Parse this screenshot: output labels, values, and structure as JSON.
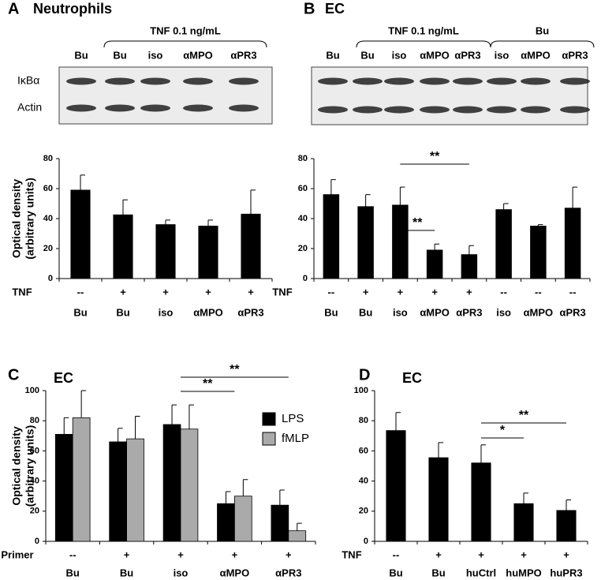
{
  "chart_data": [
    {
      "type": "bar",
      "panel": "A",
      "title": "Neutrophils",
      "blot": {
        "bracket_labels": [
          "TNF 0.1 ng/mL"
        ],
        "lane_labels": [
          "Bu",
          "Bu",
          "iso",
          "αMPO",
          "αPR3"
        ],
        "row_labels": [
          "IκBα",
          "Actin"
        ]
      },
      "ylabel": [
        "Optical density",
        "(arbitrary units)"
      ],
      "categories": [
        "Bu",
        "Bu",
        "iso",
        "αMPO",
        "αPR3"
      ],
      "condition_label": "TNF",
      "conditions": [
        "--",
        "+",
        "+",
        "+",
        "+"
      ],
      "values": [
        59,
        42.5,
        36,
        35,
        43
      ],
      "errors": [
        10,
        10,
        3,
        4,
        16
      ],
      "color": "#000000",
      "ylim": [
        0,
        80
      ],
      "yticks": [
        0,
        20,
        40,
        60,
        80
      ]
    },
    {
      "type": "bar",
      "panel": "B",
      "title": "EC",
      "blot": {
        "bracket_labels": [
          "TNF 0.1 ng/mL",
          "Bu"
        ],
        "lane_labels": [
          "Bu",
          "Bu",
          "iso",
          "αMPO",
          "αPR3",
          "iso",
          "αMPO",
          "αPR3"
        ]
      },
      "categories": [
        "Bu",
        "Bu",
        "iso",
        "αMPO",
        "αPR3",
        "iso",
        "αMPO",
        "αPR3"
      ],
      "condition_label": "TNF",
      "conditions": [
        "--",
        "+",
        "+",
        "+",
        "+",
        "--",
        "--",
        "--"
      ],
      "values": [
        56,
        48,
        49,
        19,
        16,
        46,
        35,
        47
      ],
      "errors": [
        10,
        8,
        12,
        4,
        6,
        4,
        1,
        14
      ],
      "color": "#000000",
      "significance": [
        {
          "from": 2,
          "to": 3,
          "label": "**"
        },
        {
          "from": 2,
          "to": 4,
          "label": "**"
        }
      ],
      "ylim": [
        0,
        80
      ],
      "yticks": [
        0,
        20,
        40,
        60,
        80
      ]
    },
    {
      "type": "bar",
      "panel": "C",
      "title": "EC",
      "ylabel": [
        "Optical density",
        "(arbitrary units)"
      ],
      "categories": [
        "Bu",
        "Bu",
        "iso",
        "αMPO",
        "αPR3"
      ],
      "condition_label": "Primer",
      "conditions": [
        "--",
        "+",
        "+",
        "+",
        "+"
      ],
      "series": [
        {
          "name": "LPS",
          "color": "#000000",
          "values": [
            71,
            66,
            77.5,
            25,
            24
          ],
          "errors": [
            11,
            9,
            13,
            8,
            10
          ]
        },
        {
          "name": "fMLP",
          "color": "#aaaaaa",
          "values": [
            82,
            68,
            74.5,
            30,
            7
          ],
          "errors": [
            18,
            15,
            16,
            11,
            5
          ]
        }
      ],
      "significance": [
        {
          "from": 2,
          "to": 3,
          "label": "**"
        },
        {
          "from": 2,
          "to": 4,
          "label": "**"
        }
      ],
      "ylim": [
        0,
        100
      ],
      "yticks": [
        0,
        20,
        40,
        60,
        80,
        100
      ]
    },
    {
      "type": "bar",
      "panel": "D",
      "title": "EC",
      "categories": [
        "Bu",
        "Bu",
        "huCtrl",
        "huMPO",
        "huPR3"
      ],
      "condition_label": "TNF",
      "conditions": [
        "--",
        "+",
        "+",
        "+",
        "+"
      ],
      "values": [
        73.5,
        55.5,
        52,
        25,
        20.5
      ],
      "errors": [
        12,
        10,
        12,
        7,
        7
      ],
      "color": "#000000",
      "significance": [
        {
          "from": 2,
          "to": 3,
          "label": "*"
        },
        {
          "from": 2,
          "to": 4,
          "label": "**"
        }
      ],
      "ylim": [
        0,
        100
      ],
      "yticks": [
        0,
        20,
        40,
        60,
        80,
        100
      ]
    }
  ]
}
